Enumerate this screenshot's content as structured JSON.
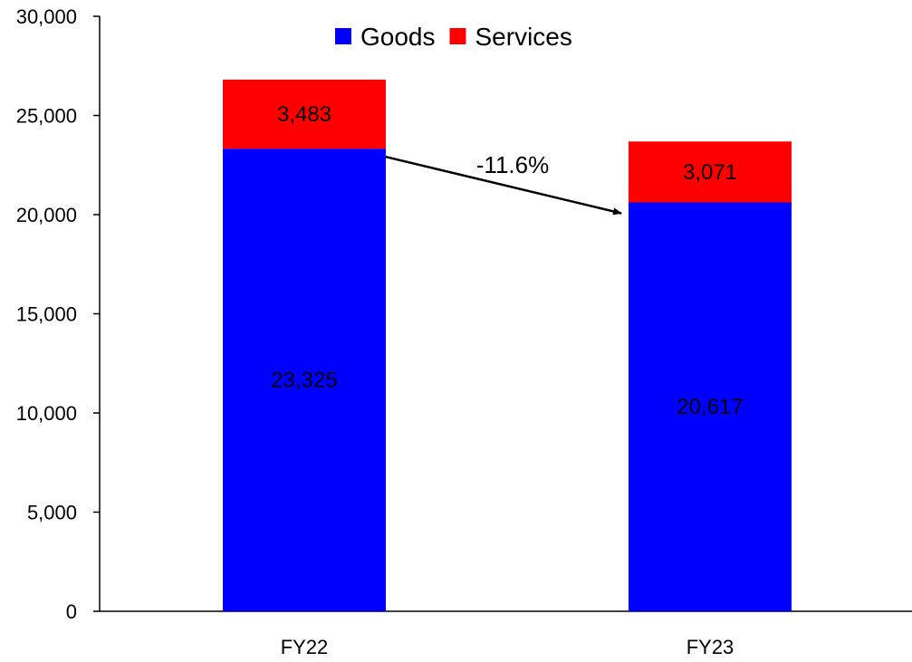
{
  "chart_data": {
    "type": "bar",
    "stacked": true,
    "categories": [
      "FY22",
      "FY23"
    ],
    "series": [
      {
        "name": "Goods",
        "values": [
          23325,
          20617
        ],
        "color": "#0000FF",
        "labels": [
          "23,325",
          "20,617"
        ]
      },
      {
        "name": "Services",
        "values": [
          3483,
          3071
        ],
        "color": "#FF0000",
        "labels": [
          "3,483",
          "3,071"
        ]
      }
    ],
    "ylim": [
      0,
      30000
    ],
    "yticks": [
      0,
      5000,
      10000,
      15000,
      20000,
      25000,
      30000
    ],
    "ytick_labels": [
      "0",
      "5,000",
      "10,000",
      "15,000",
      "20,000",
      "25,000",
      "30,000"
    ],
    "grid": false,
    "legend": {
      "position": "top-center"
    },
    "annotation": {
      "text": "-11.6%",
      "from_category": "FY22",
      "to_category": "FY23",
      "type": "arrow"
    }
  }
}
